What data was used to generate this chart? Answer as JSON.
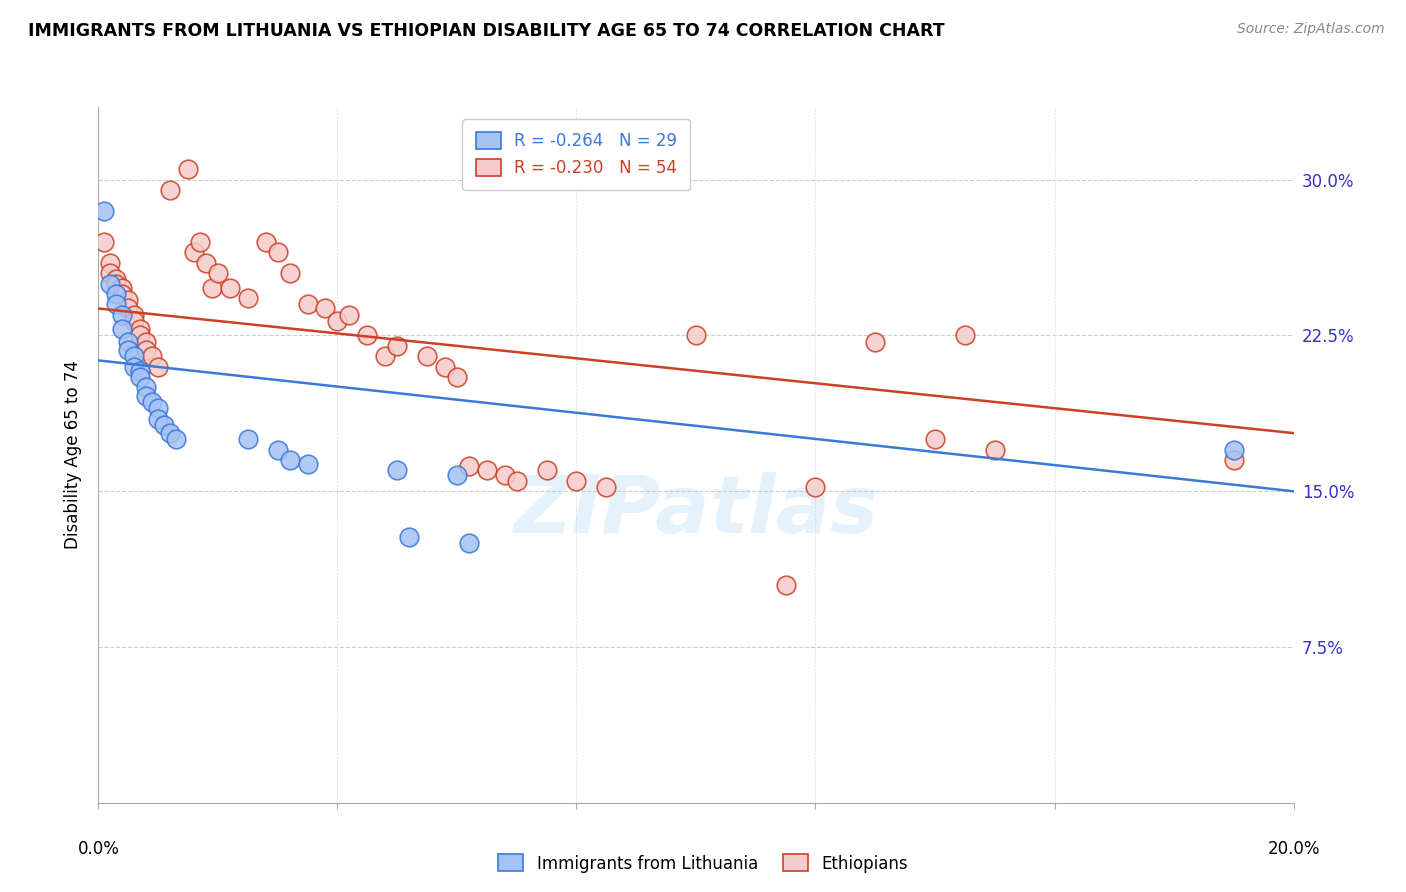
{
  "title": "IMMIGRANTS FROM LITHUANIA VS ETHIOPIAN DISABILITY AGE 65 TO 74 CORRELATION CHART",
  "source": "Source: ZipAtlas.com",
  "ylabel": "Disability Age 65 to 74",
  "ytick_labels": [
    "7.5%",
    "15.0%",
    "22.5%",
    "30.0%"
  ],
  "ytick_values": [
    0.075,
    0.15,
    0.225,
    0.3
  ],
  "xlim": [
    0.0,
    0.2
  ],
  "ylim": [
    0.0,
    0.335
  ],
  "blue_color": "#a4c2f4",
  "pink_color": "#f4cccc",
  "blue_edge_color": "#3c78d8",
  "pink_edge_color": "#cc4125",
  "blue_line_color": "#3c78d8",
  "pink_line_color": "#cc4125",
  "legend_blue_r": "R = -0.264",
  "legend_blue_n": "N = 29",
  "legend_pink_r": "R = -0.230",
  "legend_pink_n": "N = 54",
  "watermark": "ZIPatlas",
  "blue_points": [
    [
      0.001,
      0.285
    ],
    [
      0.002,
      0.25
    ],
    [
      0.003,
      0.245
    ],
    [
      0.003,
      0.24
    ],
    [
      0.004,
      0.235
    ],
    [
      0.004,
      0.228
    ],
    [
      0.005,
      0.222
    ],
    [
      0.005,
      0.218
    ],
    [
      0.006,
      0.215
    ],
    [
      0.006,
      0.21
    ],
    [
      0.007,
      0.208
    ],
    [
      0.007,
      0.205
    ],
    [
      0.008,
      0.2
    ],
    [
      0.008,
      0.196
    ],
    [
      0.009,
      0.193
    ],
    [
      0.01,
      0.19
    ],
    [
      0.01,
      0.185
    ],
    [
      0.011,
      0.182
    ],
    [
      0.012,
      0.178
    ],
    [
      0.013,
      0.175
    ],
    [
      0.025,
      0.175
    ],
    [
      0.03,
      0.17
    ],
    [
      0.032,
      0.165
    ],
    [
      0.035,
      0.163
    ],
    [
      0.05,
      0.16
    ],
    [
      0.052,
      0.128
    ],
    [
      0.06,
      0.158
    ],
    [
      0.062,
      0.125
    ],
    [
      0.19,
      0.17
    ]
  ],
  "pink_points": [
    [
      0.001,
      0.27
    ],
    [
      0.002,
      0.26
    ],
    [
      0.002,
      0.255
    ],
    [
      0.003,
      0.252
    ],
    [
      0.003,
      0.25
    ],
    [
      0.004,
      0.248
    ],
    [
      0.004,
      0.245
    ],
    [
      0.005,
      0.242
    ],
    [
      0.005,
      0.238
    ],
    [
      0.006,
      0.235
    ],
    [
      0.006,
      0.232
    ],
    [
      0.007,
      0.228
    ],
    [
      0.007,
      0.225
    ],
    [
      0.008,
      0.222
    ],
    [
      0.008,
      0.218
    ],
    [
      0.009,
      0.215
    ],
    [
      0.01,
      0.21
    ],
    [
      0.012,
      0.295
    ],
    [
      0.015,
      0.305
    ],
    [
      0.016,
      0.265
    ],
    [
      0.017,
      0.27
    ],
    [
      0.018,
      0.26
    ],
    [
      0.019,
      0.248
    ],
    [
      0.02,
      0.255
    ],
    [
      0.022,
      0.248
    ],
    [
      0.025,
      0.243
    ],
    [
      0.028,
      0.27
    ],
    [
      0.03,
      0.265
    ],
    [
      0.032,
      0.255
    ],
    [
      0.035,
      0.24
    ],
    [
      0.038,
      0.238
    ],
    [
      0.04,
      0.232
    ],
    [
      0.042,
      0.235
    ],
    [
      0.045,
      0.225
    ],
    [
      0.048,
      0.215
    ],
    [
      0.05,
      0.22
    ],
    [
      0.055,
      0.215
    ],
    [
      0.058,
      0.21
    ],
    [
      0.06,
      0.205
    ],
    [
      0.062,
      0.162
    ],
    [
      0.065,
      0.16
    ],
    [
      0.068,
      0.158
    ],
    [
      0.07,
      0.155
    ],
    [
      0.075,
      0.16
    ],
    [
      0.08,
      0.155
    ],
    [
      0.085,
      0.152
    ],
    [
      0.1,
      0.225
    ],
    [
      0.115,
      0.105
    ],
    [
      0.12,
      0.152
    ],
    [
      0.13,
      0.222
    ],
    [
      0.14,
      0.175
    ],
    [
      0.145,
      0.225
    ],
    [
      0.15,
      0.17
    ],
    [
      0.19,
      0.165
    ]
  ],
  "blue_line_x": [
    0.0,
    0.2
  ],
  "blue_line_y": [
    0.213,
    0.15
  ],
  "pink_line_x": [
    0.0,
    0.2
  ],
  "pink_line_y": [
    0.238,
    0.178
  ]
}
